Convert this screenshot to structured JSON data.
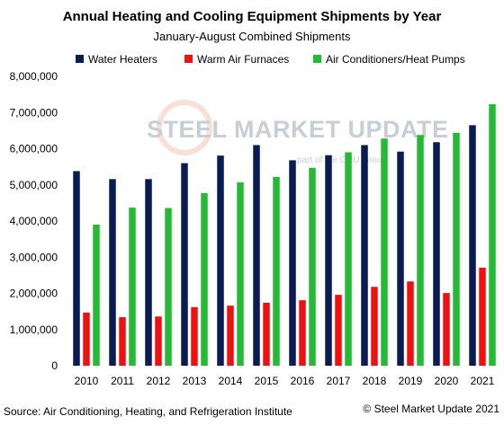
{
  "chart_data": {
    "type": "bar",
    "title": "Annual Heating and Cooling Equipment Shipments by Year",
    "subtitle": "January-August Combined Shipments",
    "xlabel": "",
    "ylabel": "",
    "categories": [
      "2010",
      "2011",
      "2012",
      "2013",
      "2014",
      "2015",
      "2016",
      "2017",
      "2018",
      "2019",
      "2020",
      "2021"
    ],
    "series": [
      {
        "name": "Water Heaters",
        "color": "#0b1c54",
        "values": [
          5380000,
          5160000,
          5160000,
          5600000,
          5810000,
          6100000,
          5680000,
          5820000,
          6100000,
          5920000,
          6180000,
          6650000
        ]
      },
      {
        "name": "Warm Air Furnaces",
        "color": "#ee1111",
        "values": [
          1470000,
          1340000,
          1360000,
          1620000,
          1660000,
          1740000,
          1810000,
          1960000,
          2180000,
          2330000,
          2010000,
          2710000
        ]
      },
      {
        "name": "Air Conditioners/Heat Pumps",
        "color": "#22bb33",
        "values": [
          3900000,
          4370000,
          4360000,
          4770000,
          5070000,
          5220000,
          5470000,
          5900000,
          6280000,
          6380000,
          6440000,
          7230000
        ]
      }
    ],
    "ylim": [
      0,
      8000000
    ],
    "yticks": [
      0,
      1000000,
      2000000,
      3000000,
      4000000,
      5000000,
      6000000,
      7000000,
      8000000
    ],
    "ytick_labels": [
      "0",
      "1,000,000",
      "2,000,000",
      "3,000,000",
      "4,000,000",
      "5,000,000",
      "6,000,000",
      "7,000,000",
      "8,000,000"
    ],
    "grid": false,
    "legend_position": "top"
  },
  "footer": {
    "source": "Source: Air Conditioning, Heating, and Refrigeration Institute",
    "copyright": "© Steel Market Update 2021"
  },
  "watermark": {
    "brand": "STEEL MARKET UPDATE",
    "tagline": "part of the CRU Group"
  }
}
